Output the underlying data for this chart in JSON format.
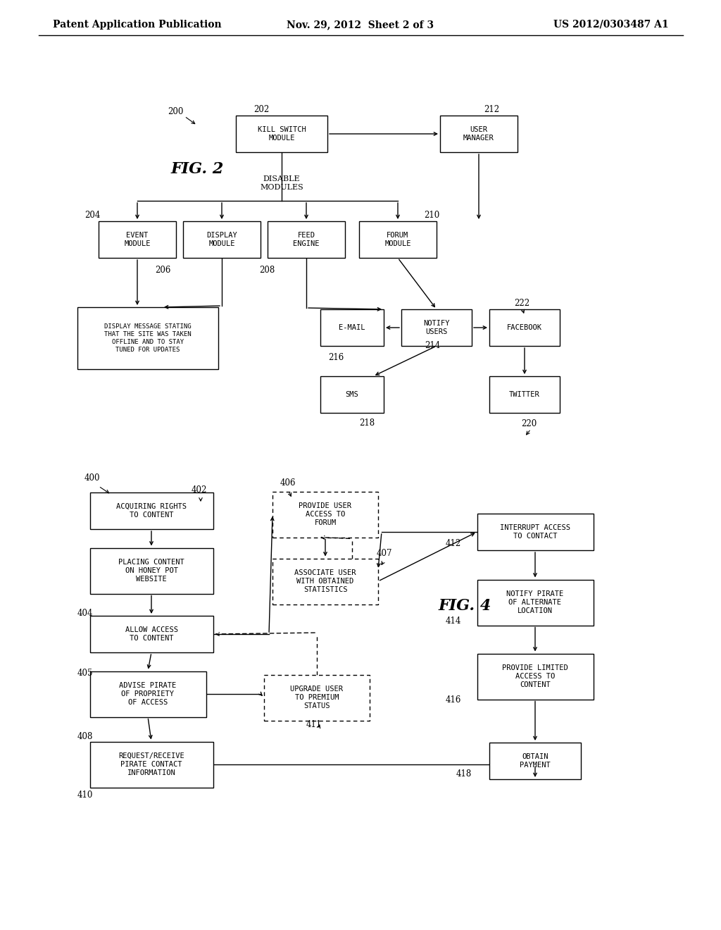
{
  "background_color": "#ffffff",
  "header_left": "Patent Application Publication",
  "header_center": "Nov. 29, 2012  Sheet 2 of 3",
  "header_right": "US 2012/0303487 A1",
  "fig2_label": "FIG. 2",
  "fig4_label": "FIG. 4"
}
